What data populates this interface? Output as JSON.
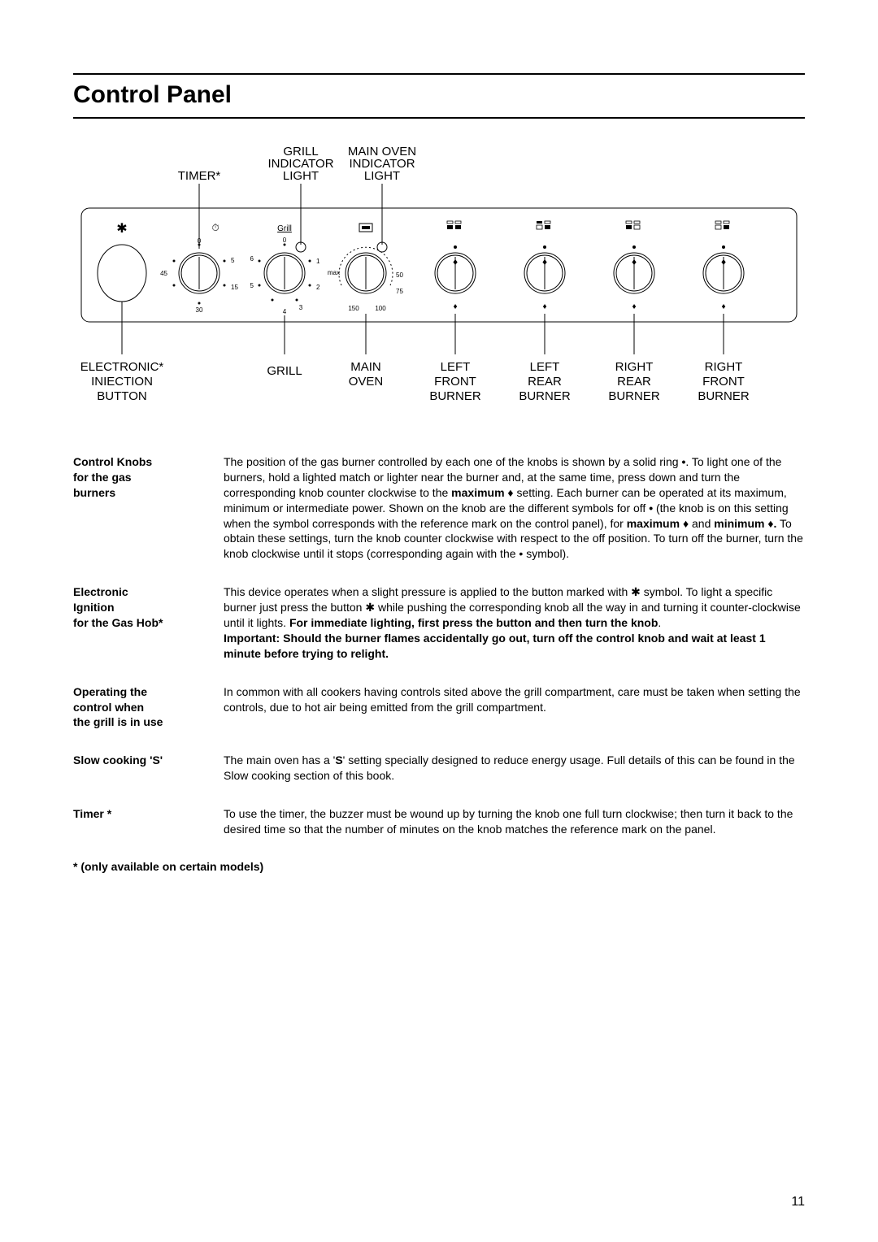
{
  "title": "Control Panel",
  "page_number": "11",
  "footnote": "* (only available on certain models)",
  "diagram": {
    "top_labels": {
      "timer": "TIMER*",
      "grill_indicator": [
        "GRILL",
        "INDICATOR",
        "LIGHT"
      ],
      "main_oven_indicator": [
        "MAIN OVEN",
        "INDICATOR",
        "LIGHT"
      ]
    },
    "bottom_labels": {
      "electronic": [
        "ELECTRONIC*",
        "INIECTION",
        "BUTTON"
      ],
      "grill": "GRILL",
      "main_oven": [
        "MAIN",
        "OVEN"
      ],
      "left_front": [
        "LEFT",
        "FRONT",
        "BURNER"
      ],
      "left_rear": [
        "LEFT",
        "REAR",
        "BURNER"
      ],
      "right_rear": [
        "RIGHT",
        "REAR",
        "BURNER"
      ],
      "right_front": [
        "RIGHT",
        "FRONT",
        "BURNER"
      ]
    },
    "knob_labels": {
      "grill_text": "Grill",
      "timer_nums": {
        "t": "0",
        "r1": "5",
        "r2": "15",
        "b": "30",
        "l": "45"
      },
      "grill_nums": {
        "t": "0",
        "r1": "1",
        "r2": "2",
        "rb": "3",
        "b": "4",
        "l": "5",
        "lt": "6"
      },
      "oven_nums_top": "max"
    }
  },
  "sections": [
    {
      "label_lines": [
        "Control Knobs",
        "for the gas",
        "burners"
      ],
      "html": "The position of the gas burner controlled by each one of the knobs is shown by a solid ring <b>•</b>. To light one of the burners, hold a lighted match or lighter near the burner and, at the same time, press down and turn the corresponding knob counter clockwise to the <b>maximum ♦</b> setting. Each burner can be operated at its maximum, minimum or intermediate power. Shown on the knob are the different symbols for off <b>•</b> (the knob is on this setting when the symbol corresponds with the reference mark on the control panel), for <b>maximum ♦</b> and <b>minimum ♦.</b> To obtain these settings, turn the knob counter clockwise with respect to the off position. To turn off the burner, turn the knob clockwise until it stops (corresponding again with the • symbol)."
    },
    {
      "label_lines": [
        "Electronic",
        "Ignition",
        "for the Gas Hob*"
      ],
      "html": "This device operates when a slight pressure is applied to the button marked with <span class='spark'>✱</span> symbol. To light a specific burner just press the button <span class='spark'>✱</span> while pushing the corresponding knob all the way in and turning it counter-clockwise until it lights. <b>For immediate lighting, first press the button and then turn the knob</b>.<br><b>Important:  Should the burner flames accidentally go out, turn off the control knob and wait at least 1 minute before trying to relight.</b>"
    },
    {
      "label_lines": [
        "Operating the",
        "control when",
        "the grill is in use"
      ],
      "html": "In common with all cookers having controls sited above the grill compartment, care must be taken when setting the controls, due to hot air being emitted from the grill compartment."
    },
    {
      "label_lines": [
        "Slow cooking 'S'"
      ],
      "html": "The main oven has a '<b>S</b>' setting specially designed to reduce energy usage. Full details of this can be found in the Slow cooking section of this book."
    },
    {
      "label_lines": [
        "Timer *"
      ],
      "html": "To use the timer, the buzzer must be wound up by turning the knob one full turn clockwise; then turn it back to the desired time so that the number of minutes on the knob matches the reference mark on the panel."
    }
  ]
}
